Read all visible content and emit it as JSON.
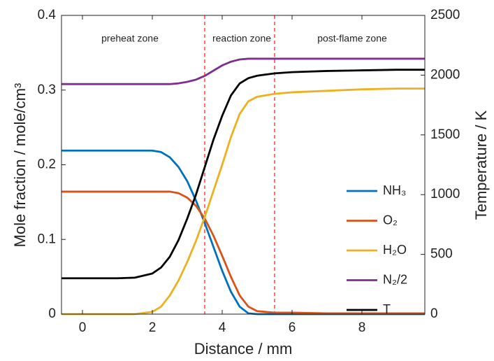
{
  "chart_data": {
    "type": "line",
    "x_label": "Distance / mm",
    "y_label": "Mole fraction / mole/cm³",
    "y2_label": "Temperature / K",
    "annotations": [
      "preheat zone",
      "reaction zone",
      "post-flame zone"
    ],
    "zone_boundaries": [
      3.5,
      5.5
    ],
    "zone_boundary_color": "#ff4040",
    "x": [
      -0.6,
      0,
      0.5,
      1,
      1.5,
      2,
      2.25,
      2.5,
      2.75,
      3,
      3.25,
      3.5,
      3.75,
      4,
      4.25,
      4.5,
      4.75,
      5,
      5.25,
      5.5,
      6,
      7,
      8,
      9,
      9.8
    ],
    "series": [
      {
        "name": "NH₃",
        "color": "#0072bd",
        "values": [
          0.219,
          0.219,
          0.219,
          0.219,
          0.219,
          0.219,
          0.217,
          0.21,
          0.197,
          0.178,
          0.152,
          0.122,
          0.09,
          0.058,
          0.03,
          0.01,
          0.001,
          0,
          0,
          0,
          0,
          0,
          0,
          0,
          0
        ]
      },
      {
        "name": "O₂",
        "color": "#d95319",
        "values": [
          0.164,
          0.164,
          0.164,
          0.164,
          0.164,
          0.164,
          0.164,
          0.164,
          0.162,
          0.156,
          0.145,
          0.128,
          0.105,
          0.078,
          0.05,
          0.025,
          0.01,
          0.004,
          0.003,
          0.002,
          0.002,
          0.001,
          0.001,
          0.001,
          0.001
        ]
      },
      {
        "name": "H₂O",
        "color": "#edb120",
        "values": [
          0,
          0,
          0,
          0,
          0,
          0.003,
          0.01,
          0.025,
          0.045,
          0.07,
          0.098,
          0.13,
          0.165,
          0.2,
          0.237,
          0.268,
          0.285,
          0.291,
          0.293,
          0.295,
          0.297,
          0.299,
          0.301,
          0.302,
          0.302
        ]
      },
      {
        "name": "N₂/2",
        "color": "#7e2f8e",
        "values": [
          0.308,
          0.308,
          0.308,
          0.308,
          0.308,
          0.308,
          0.308,
          0.308,
          0.309,
          0.311,
          0.314,
          0.319,
          0.326,
          0.333,
          0.338,
          0.341,
          0.342,
          0.342,
          0.342,
          0.342,
          0.342,
          0.342,
          0.342,
          0.342,
          0.342
        ]
      },
      {
        "name": "T",
        "color": "#000000",
        "axis": "y2",
        "values": [
          300,
          300,
          300,
          300,
          305,
          340,
          390,
          480,
          620,
          800,
          1000,
          1230,
          1460,
          1660,
          1830,
          1930,
          1975,
          1995,
          2005,
          2015,
          2025,
          2035,
          2040,
          2045,
          2045
        ]
      }
    ],
    "xlim": [
      -0.6,
      9.8
    ],
    "xticks": [
      0,
      2,
      4,
      6,
      8
    ],
    "ylim": [
      0,
      0.4
    ],
    "yticks": [
      0,
      0.1,
      0.2,
      0.3,
      0.4
    ],
    "y2lim": [
      0,
      2500
    ],
    "y2ticks": [
      0,
      500,
      1000,
      1500,
      2000,
      2500
    ],
    "legend": "right"
  }
}
